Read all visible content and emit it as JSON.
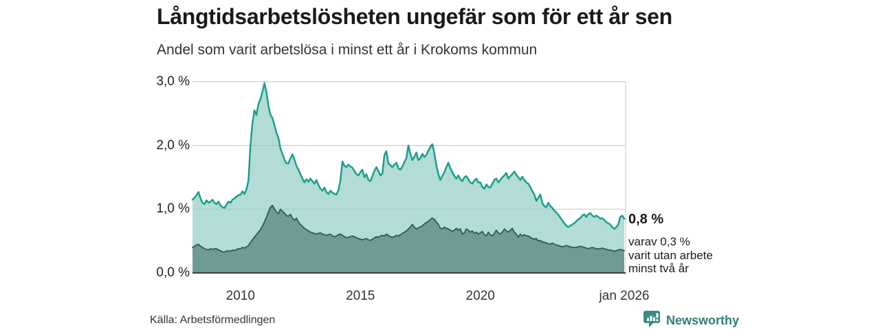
{
  "header": {
    "title": "Långtidsarbetslösheten ungefär som för ett år sen",
    "subtitle": "Andel som varit arbetslösa i minst ett år i Krokoms kommun"
  },
  "chart_data": {
    "type": "area",
    "title": "Långtidsarbetslösheten ungefär som för ett år sen",
    "subtitle": "Andel som varit arbetslösa i minst ett år i Krokoms kommun",
    "unit": "%",
    "frequency": "monthly",
    "x_start": "jan 2008",
    "x_end": "jan 2026",
    "ylim": [
      0,
      3.0
    ],
    "grid": true,
    "legend": "none",
    "y_ticks": [
      {
        "label": "0,0 %",
        "value": 0.0
      },
      {
        "label": "1,0 %",
        "value": 1.0
      },
      {
        "label": "2,0 %",
        "value": 2.0
      },
      {
        "label": "3,0 %",
        "value": 3.0
      }
    ],
    "x_ticks": [
      {
        "label": "2010",
        "year": 2010
      },
      {
        "label": "2015",
        "year": 2015
      },
      {
        "label": "2020",
        "year": 2020
      },
      {
        "label": "jan 2026",
        "year": 2026
      }
    ],
    "series": [
      {
        "name": "Andel arbetslösa minst ett år",
        "line_color": "#1b9e8d",
        "fill_color": "#b2dcd5",
        "line_width": 2.5,
        "values": [
          1.15,
          1.18,
          1.22,
          1.27,
          1.17,
          1.1,
          1.08,
          1.14,
          1.1,
          1.12,
          1.15,
          1.1,
          1.08,
          1.12,
          1.06,
          1.03,
          1.02,
          1.07,
          1.12,
          1.1,
          1.15,
          1.17,
          1.2,
          1.22,
          1.23,
          1.28,
          1.24,
          1.31,
          1.45,
          2.0,
          2.35,
          2.55,
          2.48,
          2.65,
          2.73,
          2.85,
          2.98,
          2.83,
          2.62,
          2.48,
          2.43,
          2.32,
          2.2,
          2.12,
          1.95,
          1.87,
          1.78,
          1.72,
          1.72,
          1.8,
          1.86,
          1.78,
          1.68,
          1.62,
          1.55,
          1.48,
          1.42,
          1.47,
          1.43,
          1.48,
          1.44,
          1.4,
          1.46,
          1.38,
          1.32,
          1.29,
          1.34,
          1.27,
          1.24,
          1.29,
          1.26,
          1.24,
          1.23,
          1.3,
          1.45,
          1.75,
          1.68,
          1.66,
          1.7,
          1.67,
          1.65,
          1.6,
          1.55,
          1.53,
          1.58,
          1.62,
          1.5,
          1.55,
          1.46,
          1.44,
          1.52,
          1.6,
          1.66,
          1.6,
          1.53,
          1.56,
          1.85,
          1.91,
          1.72,
          1.69,
          1.66,
          1.7,
          1.73,
          1.64,
          1.62,
          1.67,
          1.74,
          1.8,
          2.0,
          1.87,
          1.77,
          1.82,
          1.89,
          1.77,
          1.8,
          1.87,
          1.82,
          1.85,
          1.92,
          1.98,
          2.02,
          1.88,
          1.69,
          1.55,
          1.46,
          1.52,
          1.58,
          1.66,
          1.73,
          1.64,
          1.58,
          1.52,
          1.48,
          1.53,
          1.47,
          1.44,
          1.5,
          1.52,
          1.47,
          1.42,
          1.4,
          1.45,
          1.48,
          1.42,
          1.42,
          1.35,
          1.32,
          1.39,
          1.35,
          1.34,
          1.4,
          1.46,
          1.48,
          1.42,
          1.46,
          1.5,
          1.53,
          1.57,
          1.48,
          1.52,
          1.55,
          1.59,
          1.54,
          1.5,
          1.46,
          1.51,
          1.46,
          1.42,
          1.4,
          1.35,
          1.28,
          1.23,
          1.13,
          1.18,
          1.23,
          1.1,
          1.05,
          1.03,
          1.1,
          1.05,
          1.02,
          0.98,
          0.95,
          0.91,
          0.87,
          0.82,
          0.78,
          0.74,
          0.72,
          0.74,
          0.76,
          0.78,
          0.81,
          0.84,
          0.86,
          0.9,
          0.92,
          0.88,
          0.92,
          0.94,
          0.9,
          0.88,
          0.9,
          0.88,
          0.85,
          0.86,
          0.83,
          0.8,
          0.78,
          0.76,
          0.72,
          0.69,
          0.72,
          0.76,
          0.88,
          0.9,
          0.85
        ]
      },
      {
        "name": "varav utan arbete minst två år",
        "line_color": "#2c5a57",
        "fill_color": "#6e9b96",
        "line_width": 1.8,
        "values": [
          0.4,
          0.42,
          0.44,
          0.45,
          0.42,
          0.4,
          0.38,
          0.37,
          0.36,
          0.38,
          0.37,
          0.38,
          0.38,
          0.36,
          0.35,
          0.33,
          0.33,
          0.34,
          0.35,
          0.34,
          0.36,
          0.35,
          0.37,
          0.38,
          0.38,
          0.4,
          0.39,
          0.41,
          0.43,
          0.48,
          0.52,
          0.56,
          0.6,
          0.64,
          0.68,
          0.74,
          0.8,
          0.88,
          0.96,
          1.03,
          1.06,
          1.0,
          0.96,
          0.93,
          1.0,
          0.97,
          0.94,
          0.9,
          0.89,
          0.92,
          0.86,
          0.83,
          0.86,
          0.8,
          0.76,
          0.73,
          0.7,
          0.68,
          0.66,
          0.64,
          0.63,
          0.62,
          0.61,
          0.62,
          0.63,
          0.61,
          0.6,
          0.59,
          0.6,
          0.61,
          0.58,
          0.57,
          0.58,
          0.6,
          0.61,
          0.59,
          0.57,
          0.55,
          0.56,
          0.57,
          0.58,
          0.57,
          0.55,
          0.54,
          0.53,
          0.52,
          0.53,
          0.54,
          0.52,
          0.51,
          0.53,
          0.55,
          0.57,
          0.56,
          0.58,
          0.59,
          0.58,
          0.61,
          0.59,
          0.57,
          0.56,
          0.57,
          0.59,
          0.58,
          0.6,
          0.62,
          0.64,
          0.66,
          0.69,
          0.72,
          0.76,
          0.72,
          0.69,
          0.71,
          0.72,
          0.74,
          0.77,
          0.79,
          0.81,
          0.84,
          0.86,
          0.84,
          0.8,
          0.76,
          0.7,
          0.69,
          0.72,
          0.7,
          0.69,
          0.67,
          0.65,
          0.67,
          0.7,
          0.67,
          0.69,
          0.61,
          0.63,
          0.69,
          0.67,
          0.64,
          0.66,
          0.62,
          0.64,
          0.61,
          0.63,
          0.65,
          0.6,
          0.58,
          0.64,
          0.6,
          0.58,
          0.62,
          0.67,
          0.63,
          0.61,
          0.64,
          0.69,
          0.66,
          0.64,
          0.67,
          0.7,
          0.64,
          0.61,
          0.56,
          0.61,
          0.58,
          0.6,
          0.58,
          0.58,
          0.56,
          0.54,
          0.53,
          0.54,
          0.5,
          0.51,
          0.49,
          0.48,
          0.47,
          0.46,
          0.45,
          0.47,
          0.45,
          0.44,
          0.43,
          0.42,
          0.41,
          0.42,
          0.43,
          0.42,
          0.41,
          0.4,
          0.4,
          0.4,
          0.41,
          0.42,
          0.41,
          0.4,
          0.39,
          0.38,
          0.39,
          0.4,
          0.39,
          0.38,
          0.38,
          0.38,
          0.39,
          0.38,
          0.37,
          0.36,
          0.36,
          0.35,
          0.34,
          0.35,
          0.36,
          0.37,
          0.36,
          0.35
        ]
      }
    ],
    "annotations": {
      "end_value_label": "0,8 %",
      "end_note": "varav 0,3 %\nvarit utan arbete\nminst två år"
    }
  },
  "footer": {
    "source": "Källa: Arbetsförmedlingen",
    "logo_text": "Newsworthy"
  },
  "colors": {
    "background": "#ffffff",
    "title_text": "#1a1a1a",
    "body_text": "#333333",
    "grid": "#dcdcdc",
    "axis_baseline": "#3d3d3d",
    "right_border": "#d0d0d0",
    "series1_line": "#1b9e8d",
    "series1_fill": "#b2dcd5",
    "series2_line": "#2c5a57",
    "series2_fill": "#6e9b96",
    "logo_teal": "#3a8b85"
  }
}
